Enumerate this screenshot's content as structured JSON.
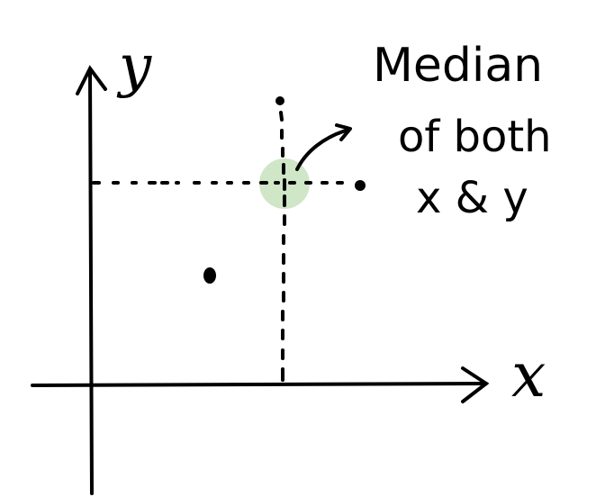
{
  "diagram": {
    "axes": {
      "x_label": "x",
      "y_label": "y"
    },
    "annotation": {
      "lines": [
        "Median",
        "of both",
        "x & y"
      ]
    },
    "points": [
      {
        "name": "top-point"
      },
      {
        "name": "left-point"
      },
      {
        "name": "right-point"
      }
    ],
    "colors": {
      "ink": "#000000",
      "highlight": "#cfe6c7",
      "background": "#ffffff"
    }
  }
}
